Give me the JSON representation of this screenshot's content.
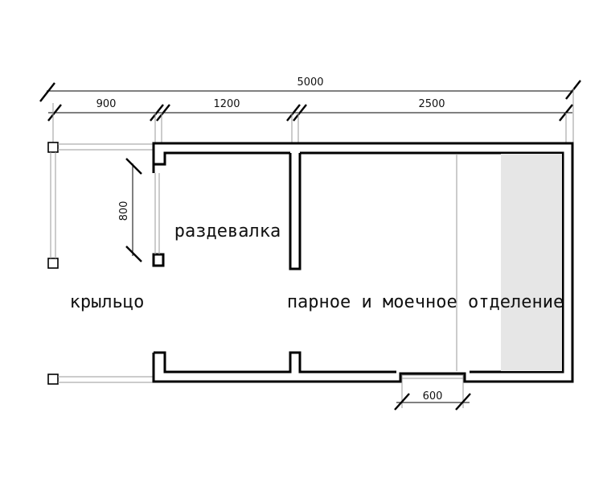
{
  "dimensions": {
    "total": "5000",
    "porch_width": "900",
    "changing_room_width": "1200",
    "steam_room_width": "2500",
    "porch_door_height": "800",
    "bottom_door_width": "600"
  },
  "rooms": {
    "porch": "крыльцо",
    "changing_room": "раздевалка",
    "steam_wash_room": "парное и моечное отделение"
  },
  "colors": {
    "walls": "#000000",
    "shelf_fill": "#e6e6e6",
    "extension_lines": "#9a9a9a"
  }
}
